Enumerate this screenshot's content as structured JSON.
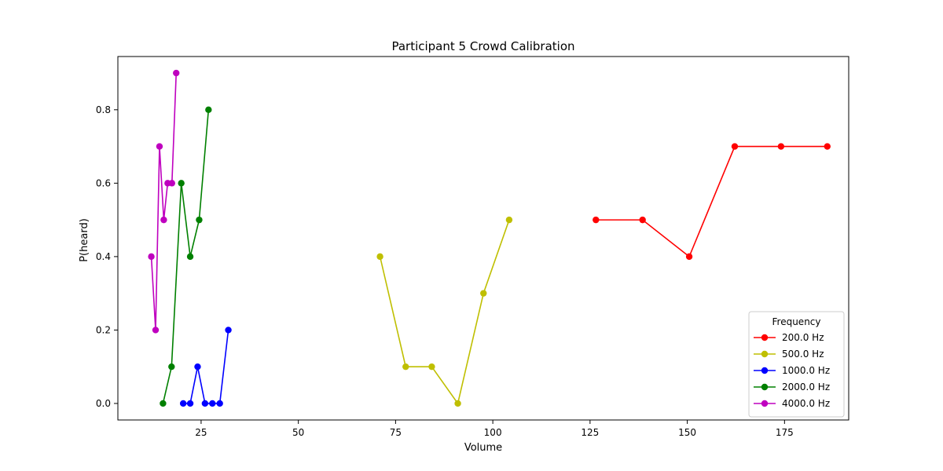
{
  "chart_data": {
    "type": "line",
    "title": "Participant 5 Crowd Calibration",
    "xlabel": "Volume",
    "ylabel": "P(heard)",
    "xlim": [
      3.6,
      191.5
    ],
    "ylim": [
      -0.045,
      0.945
    ],
    "xticks": [
      25,
      50,
      75,
      100,
      125,
      150,
      175
    ],
    "yticks": [
      0.0,
      0.2,
      0.4,
      0.6,
      0.8
    ],
    "ytick_format": 1,
    "grid": false,
    "legend": {
      "title": "Frequency",
      "position": "lower-right"
    },
    "series": [
      {
        "name": "200.0 Hz",
        "color": "#ff0000",
        "x": [
          126.5,
          138.5,
          150.5,
          162.2,
          174.1,
          186.0
        ],
        "y": [
          0.5,
          0.5,
          0.4,
          0.7,
          0.7,
          0.7
        ]
      },
      {
        "name": "500.0 Hz",
        "color": "#bfbf00",
        "x": [
          71.0,
          77.6,
          84.3,
          91.0,
          97.6,
          104.2
        ],
        "y": [
          0.4,
          0.1,
          0.1,
          0.0,
          0.3,
          0.5
        ]
      },
      {
        "name": "1000.0 Hz",
        "color": "#0000ff",
        "x": [
          20.4,
          22.2,
          24.1,
          26.0,
          27.9,
          29.8,
          32.0
        ],
        "y": [
          0.0,
          0.0,
          0.1,
          0.0,
          0.0,
          0.0,
          0.2
        ]
      },
      {
        "name": "2000.0 Hz",
        "color": "#008000",
        "x": [
          15.2,
          17.4,
          19.9,
          22.2,
          24.5,
          26.9
        ],
        "y": [
          0.0,
          0.1,
          0.6,
          0.4,
          0.5,
          0.8
        ]
      },
      {
        "name": "4000.0 Hz",
        "color": "#bf00bf",
        "x": [
          12.2,
          13.3,
          14.3,
          15.4,
          16.4,
          17.5,
          18.6
        ],
        "y": [
          0.4,
          0.2,
          0.7,
          0.5,
          0.6,
          0.6,
          0.9
        ]
      }
    ]
  }
}
